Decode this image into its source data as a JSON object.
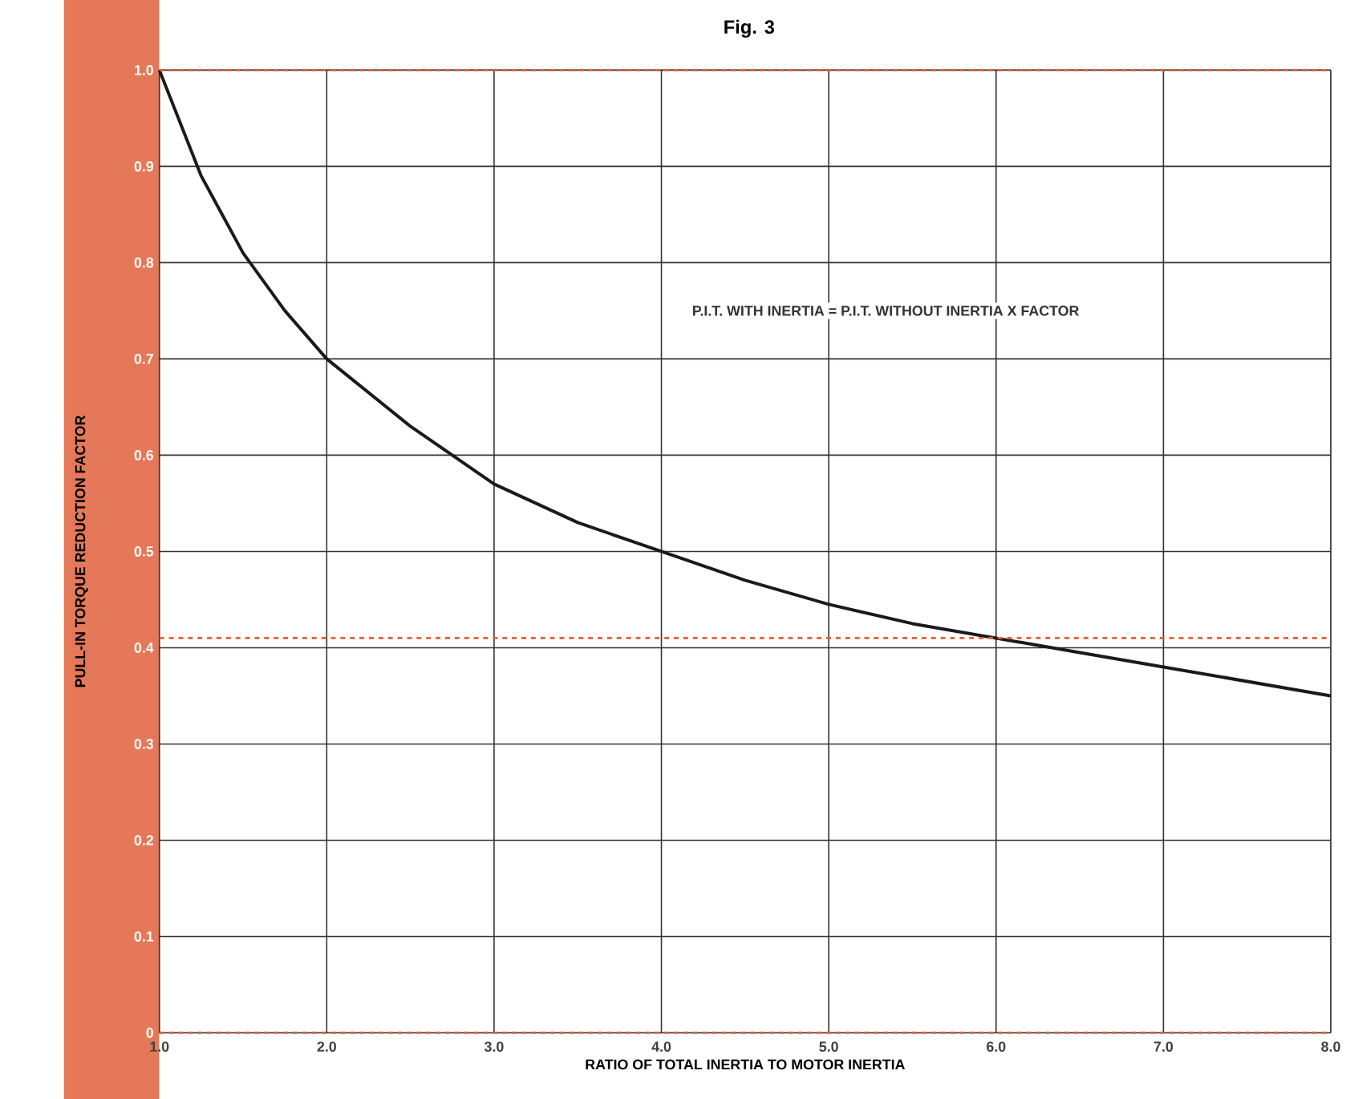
{
  "chart_data": {
    "type": "line",
    "title": "Fig. 3",
    "xlabel": "RATIO OF TOTAL INERTIA TO MOTOR INERTIA",
    "ylabel": "PULL-IN TORQUE REDUCTION FACTOR",
    "annotations": [
      "P.I.T. WITH INERTIA = P.I.T. WITHOUT INERTIA X FACTOR"
    ],
    "x": [
      1.0,
      1.25,
      1.5,
      1.75,
      2.0,
      2.5,
      3.0,
      3.5,
      4.0,
      4.5,
      5.0,
      5.5,
      6.0,
      6.5,
      7.0,
      7.5,
      8.0
    ],
    "series": [
      {
        "color": "#1a1a1a",
        "values": [
          1.0,
          0.89,
          0.81,
          0.75,
          0.7,
          0.63,
          0.57,
          0.53,
          0.5,
          0.47,
          0.445,
          0.425,
          0.41,
          0.395,
          0.38,
          0.365,
          0.35
        ]
      }
    ],
    "xlim": [
      1,
      8
    ],
    "ylim": [
      0,
      1
    ],
    "xticks": [
      {
        "value": 1,
        "label": "1.0"
      },
      {
        "value": 2,
        "label": "2.0"
      },
      {
        "value": 3,
        "label": "3.0"
      },
      {
        "value": 4,
        "label": "4.0"
      },
      {
        "value": 5,
        "label": "5.0"
      },
      {
        "value": 6,
        "label": "6.0"
      },
      {
        "value": 7,
        "label": "7.0"
      },
      {
        "value": 8,
        "label": "8.0"
      }
    ],
    "yticks": [
      0,
      0.1,
      0.2,
      0.3,
      0.4,
      0.5,
      0.6,
      0.7,
      0.8,
      0.9,
      {
        "value": 1,
        "label": "1.0"
      }
    ],
    "ref_lines": [
      {
        "axis": "y",
        "value": 1,
        "color": "#e0603c",
        "line_style": "dashed"
      },
      {
        "axis": "y",
        "value": 0.41,
        "color": "#e0603c",
        "line_style": "dashed"
      },
      {
        "axis": "y",
        "value": 0,
        "color": "#e0603c",
        "line_style": "dashed"
      }
    ],
    "grid": true,
    "marker": "none",
    "line_style": "solid"
  }
}
